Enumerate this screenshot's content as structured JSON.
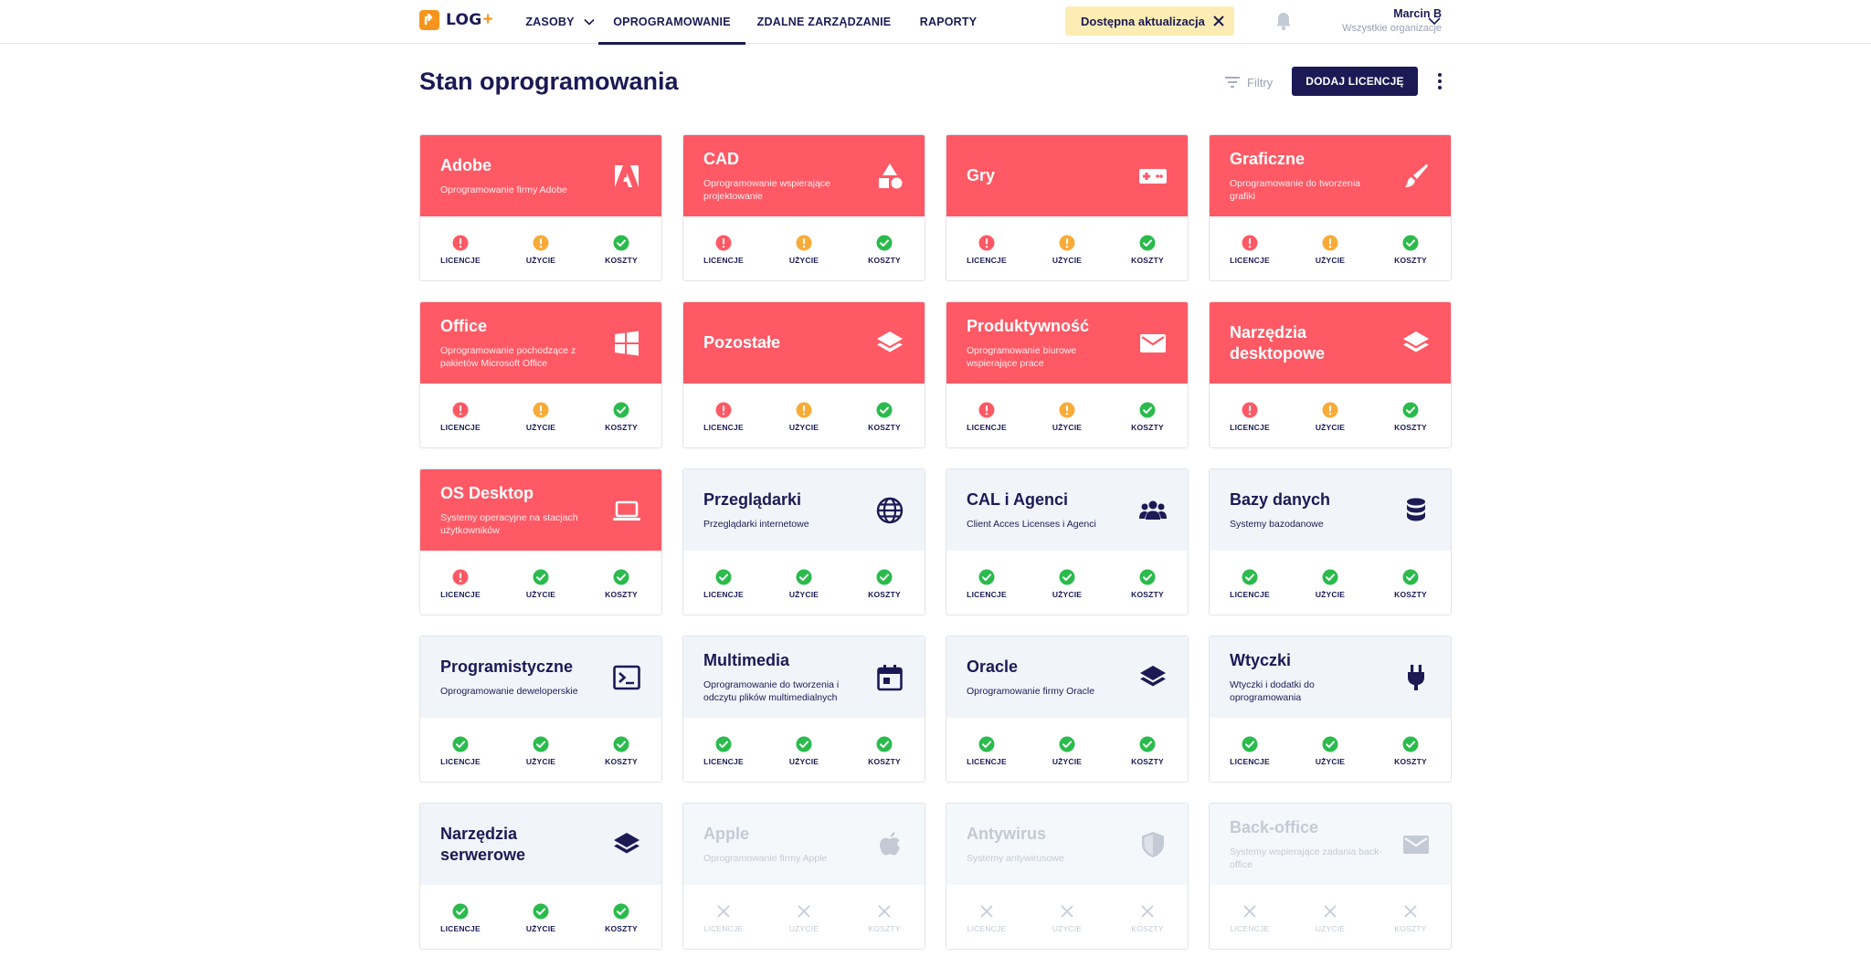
{
  "header": {
    "logo_text": "LOG",
    "logo_plus": "+",
    "nav": [
      {
        "label": "ZASOBY"
      },
      {
        "label": "OPROGRAMOWANIE"
      },
      {
        "label": "ZDALNE ZARZĄDZANIE"
      },
      {
        "label": "RAPORTY"
      }
    ],
    "active_nav": "OPROGRAMOWANIE",
    "update_badge": "Dostępna aktualizacja",
    "user": {
      "name": "Marcin B",
      "org": "Wszystkie organizacje"
    }
  },
  "page": {
    "title": "Stan oprogramowania",
    "filters_label": "Filtry",
    "add_button": "DODAJ LICENCJĘ"
  },
  "metric_labels": {
    "licenses": "LICENCJE",
    "usage": "UŻYCIE",
    "costs": "KOSZTY"
  },
  "colors": {
    "primary": "#1b1a55",
    "alert_card": "#fe5965",
    "neutral_card": "#f1f5fa",
    "error": "#fe5965",
    "warning": "#f9ab38",
    "ok": "#2bbb4d",
    "disabled": "#c3cad6",
    "update_badge": "#fdedb5"
  },
  "cards": [
    {
      "title": "Adobe",
      "desc": "Oprogramowanie firmy Adobe",
      "icon": "adobe-icon",
      "style": "red",
      "status": [
        "error",
        "warning",
        "ok"
      ]
    },
    {
      "title": "CAD",
      "desc": "Oprogramowanie wspierające projektowanie",
      "icon": "shapes-icon",
      "style": "red",
      "status": [
        "error",
        "warning",
        "ok"
      ]
    },
    {
      "title": "Gry",
      "desc": "",
      "icon": "gamepad-icon",
      "style": "red",
      "status": [
        "error",
        "warning",
        "ok"
      ]
    },
    {
      "title": "Graficzne",
      "desc": "Oprogramowanie do tworzenia grafiki",
      "icon": "brush-icon",
      "style": "red",
      "status": [
        "error",
        "warning",
        "ok"
      ]
    },
    {
      "title": "Office",
      "desc": "Oprogramowanie pochodzące z pakietów Microsoft Office",
      "icon": "windows-icon",
      "style": "red",
      "status": [
        "error",
        "warning",
        "ok"
      ]
    },
    {
      "title": "Pozostałe",
      "desc": "",
      "icon": "layers-icon",
      "style": "red",
      "status": [
        "error",
        "warning",
        "ok"
      ]
    },
    {
      "title": "Produktywność",
      "desc": "Oprogramowanie biurowe wspierające prace",
      "icon": "envelope-icon",
      "style": "red",
      "status": [
        "error",
        "warning",
        "ok"
      ]
    },
    {
      "title": "Narzędzia desktopowe",
      "desc": "",
      "icon": "layers-icon",
      "style": "red",
      "status": [
        "error",
        "warning",
        "ok"
      ]
    },
    {
      "title": "OS Desktop",
      "desc": "Systemy operacyjne na stacjach użytkowników",
      "icon": "laptop-icon",
      "style": "red",
      "status": [
        "error",
        "ok",
        "ok"
      ]
    },
    {
      "title": "Przeglądarki",
      "desc": "Przeglądarki internetowe",
      "icon": "globe-icon",
      "style": "blue",
      "status": [
        "ok",
        "ok",
        "ok"
      ]
    },
    {
      "title": "CAL i Agenci",
      "desc": "Client Acces Licenses i Agenci",
      "icon": "users-icon",
      "style": "blue",
      "status": [
        "ok",
        "ok",
        "ok"
      ]
    },
    {
      "title": "Bazy danych",
      "desc": "Systemy bazodanowe",
      "icon": "database-icon",
      "style": "blue",
      "status": [
        "ok",
        "ok",
        "ok"
      ]
    },
    {
      "title": "Programistyczne",
      "desc": "Oprogramowanie deweloperskie",
      "icon": "terminal-icon",
      "style": "blue",
      "status": [
        "ok",
        "ok",
        "ok"
      ]
    },
    {
      "title": "Multimedia",
      "desc": "Oprogramowanie do tworzenia i odczytu plików multimedialnych",
      "icon": "calendar-icon",
      "style": "blue",
      "status": [
        "ok",
        "ok",
        "ok"
      ]
    },
    {
      "title": "Oracle",
      "desc": "Oprogramowanie firmy Oracle",
      "icon": "layers-icon",
      "style": "blue",
      "status": [
        "ok",
        "ok",
        "ok"
      ]
    },
    {
      "title": "Wtyczki",
      "desc": "Wtyczki i dodatki do oprogramowania",
      "icon": "plug-icon",
      "style": "blue",
      "status": [
        "ok",
        "ok",
        "ok"
      ]
    },
    {
      "title": "Narzędzia serwerowe",
      "desc": "",
      "icon": "layers-icon",
      "style": "blue",
      "status": [
        "ok",
        "ok",
        "ok"
      ]
    },
    {
      "title": "Apple",
      "desc": "Oprogramowanie firmy Apple",
      "icon": "apple-icon",
      "style": "disabled",
      "status": [
        "none",
        "none",
        "none"
      ]
    },
    {
      "title": "Antywirus",
      "desc": "Systemy antywirusowe",
      "icon": "shield-icon",
      "style": "disabled",
      "status": [
        "none",
        "none",
        "none"
      ]
    },
    {
      "title": "Back-office",
      "desc": "Systemy wspierające zadania back-office",
      "icon": "envelope-icon",
      "style": "disabled",
      "status": [
        "none",
        "none",
        "none"
      ]
    }
  ]
}
